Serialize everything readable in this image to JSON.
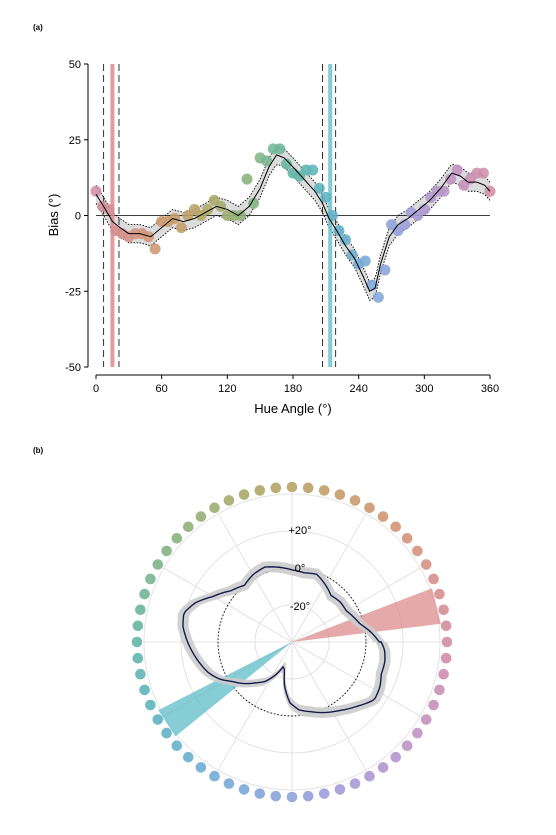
{
  "chart_data": [
    {
      "panel_label": "(a)",
      "type": "line",
      "xlabel": "Hue Angle (°)",
      "ylabel": "Bias (°)",
      "xlim": [
        0,
        360
      ],
      "ylim": [
        -50,
        50
      ],
      "xticks": [
        0,
        60,
        120,
        180,
        240,
        300,
        360
      ],
      "yticks": [
        50,
        25,
        0,
        -25,
        -50
      ],
      "zero_line": true,
      "vertical_lines": [
        {
          "x": 15,
          "color": "#d98c8c",
          "ci": [
            7,
            21
          ]
        },
        {
          "x": 214,
          "color": "#6cc3cf",
          "ci": [
            207,
            219
          ]
        }
      ],
      "curve": {
        "x": [
          0,
          7,
          15,
          22,
          30,
          40,
          50,
          60,
          70,
          80,
          90,
          100,
          110,
          120,
          130,
          140,
          150,
          158,
          165,
          172,
          180,
          190,
          200,
          207,
          213,
          220,
          228,
          236,
          244,
          250,
          255,
          260,
          268,
          276,
          285,
          295,
          305,
          315,
          325,
          333,
          340,
          348,
          355,
          360
        ],
        "y": [
          7,
          3,
          -2,
          -4,
          -6,
          -6,
          -7,
          -4,
          -1,
          -2,
          -1,
          1,
          3,
          2,
          0,
          3,
          9,
          16,
          20,
          19,
          16,
          12,
          8,
          4,
          -1,
          -5,
          -10,
          -14,
          -20,
          -25,
          -24,
          -16,
          -7,
          -3,
          -1,
          2,
          5,
          9,
          14,
          13,
          11,
          11,
          10,
          8
        ],
        "ci_halfwidth": 3
      },
      "points": {
        "x": [
          0,
          6,
          12,
          18,
          24,
          30,
          36,
          42,
          48,
          54,
          60,
          66,
          72,
          78,
          84,
          90,
          96,
          102,
          108,
          114,
          120,
          126,
          132,
          138,
          144,
          150,
          156,
          162,
          168,
          174,
          180,
          186,
          192,
          198,
          204,
          210,
          216,
          222,
          228,
          234,
          240,
          246,
          252,
          258,
          264,
          270,
          276,
          282,
          288,
          294,
          300,
          306,
          312,
          318,
          324,
          330,
          336,
          342,
          348,
          354,
          360
        ],
        "y": [
          8,
          3,
          2,
          -5,
          -6,
          -7,
          -6,
          -6,
          -7,
          -11,
          -2,
          -2,
          -1,
          -4,
          0,
          2,
          0,
          2,
          5,
          3,
          0,
          0,
          0,
          12,
          4,
          19,
          18,
          22,
          22,
          17,
          14,
          13,
          15,
          15,
          9,
          6,
          0,
          -5,
          -8,
          -13,
          -16,
          -15,
          -23,
          -27,
          -18,
          -3,
          -5,
          -3,
          1,
          0,
          2,
          6,
          8,
          8,
          12,
          15,
          10,
          12,
          14,
          14,
          8
        ]
      }
    },
    {
      "panel_label": "(b)",
      "type": "polar",
      "radial_labels": [
        "+20°",
        "0°",
        "-20°"
      ],
      "radial_ticks": [
        20,
        0,
        -20
      ],
      "reference_circle": 0,
      "wedges": [
        {
          "hue": 15,
          "color": "#dc8c8c",
          "ci": [
            7,
            21
          ]
        },
        {
          "hue": 214,
          "color": "#5dbcc8",
          "ci": [
            207,
            219
          ]
        }
      ],
      "ring_points": 60
    }
  ]
}
